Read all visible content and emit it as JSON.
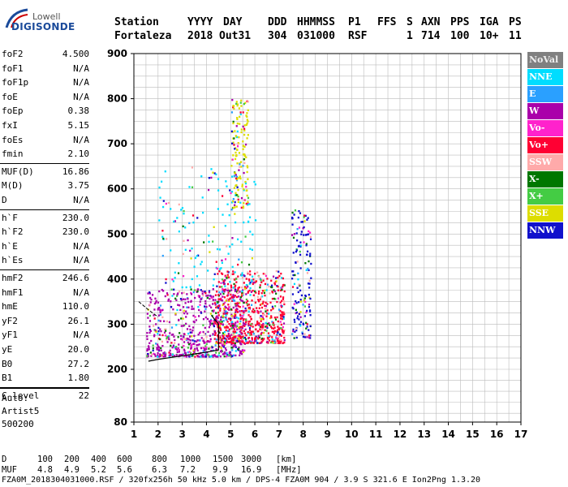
{
  "logo": {
    "brand": "Lowell",
    "product": "DIGISONDE"
  },
  "header": {
    "labels": [
      "Station",
      "YYYY",
      "DAY",
      "DDD",
      "HHMMSS",
      "P1",
      "FFS",
      "S",
      "AXN",
      "PPS",
      "IGA",
      "PS"
    ],
    "values": [
      "Fortaleza",
      "2018",
      "Out31",
      "304",
      "031000",
      "RSF",
      "",
      "1",
      "714",
      "100",
      "10+",
      "11"
    ]
  },
  "params": [
    {
      "name": "foF2",
      "value": "4.500"
    },
    {
      "name": "foF1",
      "value": "N/A"
    },
    {
      "name": "foF1p",
      "value": "N/A"
    },
    {
      "name": "foE",
      "value": "N/A"
    },
    {
      "name": "foEp",
      "value": "0.38"
    },
    {
      "name": "fxI",
      "value": "5.15"
    },
    {
      "name": "foEs",
      "value": "N/A"
    },
    {
      "name": "fmin",
      "value": "2.10"
    },
    {
      "name": "MUF(D)",
      "value": "16.86"
    },
    {
      "name": "M(D)",
      "value": "3.75"
    },
    {
      "name": "D",
      "value": "N/A"
    },
    {
      "name": "h`F",
      "value": "230.0"
    },
    {
      "name": "h`F2",
      "value": "230.0"
    },
    {
      "name": "h`E",
      "value": "N/A"
    },
    {
      "name": "h`Es",
      "value": "N/A"
    },
    {
      "name": "hmF2",
      "value": "246.6"
    },
    {
      "name": "hmF1",
      "value": "N/A"
    },
    {
      "name": "hmE",
      "value": "110.0"
    },
    {
      "name": "yF2",
      "value": "26.1"
    },
    {
      "name": "yF1",
      "value": "N/A"
    },
    {
      "name": "yE",
      "value": "20.0"
    },
    {
      "name": "B0",
      "value": "27.2"
    },
    {
      "name": "B1",
      "value": "1.80"
    },
    {
      "name": "C-level",
      "value": "22"
    }
  ],
  "autoscale": {
    "label": "Auto:",
    "artist": "Artist5",
    "version": "500200"
  },
  "legend": [
    {
      "label": "NoVal",
      "color": "#808080"
    },
    {
      "label": "NNE",
      "color": "#00ddff"
    },
    {
      "label": "E",
      "color": "#2aa0ff"
    },
    {
      "label": "W",
      "color": "#aa00aa"
    },
    {
      "label": "Vo-",
      "color": "#ff22cc"
    },
    {
      "label": "Vo+",
      "color": "#ff0033"
    },
    {
      "label": "SSW",
      "color": "#ffaaaa"
    },
    {
      "label": "X-",
      "color": "#007700"
    },
    {
      "label": "X+",
      "color": "#44cc44"
    },
    {
      "label": "SSE",
      "color": "#dddd00"
    },
    {
      "label": "NNW",
      "color": "#1111cc"
    }
  ],
  "chart_data": {
    "type": "scatter",
    "title": "",
    "xlabel": "",
    "ylabel": "",
    "xlim": [
      1,
      17
    ],
    "ylim": [
      80,
      900
    ],
    "x_ticks": [
      1,
      2,
      3,
      4,
      5,
      6,
      7,
      8,
      9,
      10,
      11,
      12,
      13,
      14,
      15,
      16,
      17
    ],
    "y_ticks": [
      80,
      200,
      300,
      400,
      500,
      600,
      700,
      800,
      900
    ],
    "grid": true,
    "legend_position": "right",
    "trace": {
      "name": "",
      "points": [
        [
          1.6,
          218
        ],
        [
          2.0,
          222
        ],
        [
          2.5,
          226
        ],
        [
          3.0,
          230
        ],
        [
          3.5,
          234
        ],
        [
          4.0,
          238
        ],
        [
          4.5,
          243
        ],
        [
          4.5,
          300
        ],
        [
          4.2,
          320
        ]
      ]
    },
    "trace_upper": {
      "points": [
        [
          1.2,
          350
        ],
        [
          1.6,
          332
        ],
        [
          2.0,
          316
        ]
      ]
    },
    "clusters": [
      {
        "x_range": [
          1.5,
          5.6
        ],
        "y_range": [
          230,
          380
        ],
        "density": "high",
        "dominant": "W"
      },
      {
        "x_range": [
          4.3,
          7.2
        ],
        "y_range": [
          260,
          420
        ],
        "density": "high",
        "dominant": "Vo+"
      },
      {
        "x_range": [
          2.0,
          6.0
        ],
        "y_range": [
          380,
          650
        ],
        "density": "low",
        "dominant": "NNE"
      },
      {
        "x_range": [
          5.0,
          5.7
        ],
        "y_range": [
          560,
          800
        ],
        "density": "low",
        "dominant": "SSE"
      },
      {
        "x_range": [
          7.5,
          8.3
        ],
        "y_range": [
          270,
          560
        ],
        "density": "low",
        "dominant": "NNW"
      }
    ]
  },
  "distance_table": {
    "rows": [
      {
        "label": "D",
        "values": [
          "100",
          "200",
          "400",
          "600",
          "800",
          "1000",
          "1500",
          "3000"
        ],
        "unit": "[km]"
      },
      {
        "label": "MUF",
        "values": [
          "4.8",
          "4.9",
          "5.2",
          "5.6",
          "6.3",
          "7.2",
          "9.9",
          "16.9"
        ],
        "unit": "[MHz]"
      }
    ]
  },
  "footer": {
    "file": "FZA0M_2018304031000.RSF",
    "grid": "320fx256h 50 kHz 5.0 km",
    "instrument": "DPS-4 FZA0M 904",
    "coords": "3.9 S 321.6 E",
    "app": "Ion2Png 1.3.20"
  }
}
